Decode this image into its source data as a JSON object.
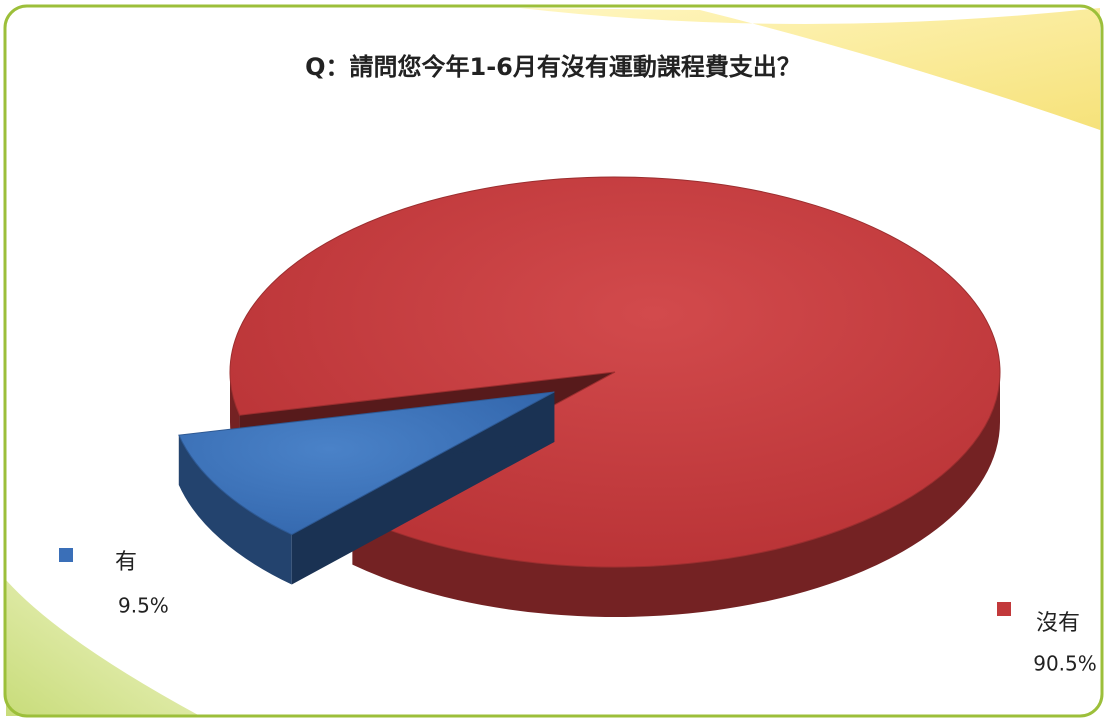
{
  "chart_data": {
    "type": "pie3d",
    "title": "Q：請問您今年1-6月有沒有運動課程費支出？",
    "categories": [
      "有",
      "沒有"
    ],
    "values": [
      9.5,
      90.5
    ],
    "value_labels": [
      "9.5%",
      "90.5%"
    ],
    "colors": [
      "#3a6fb8",
      "#c2393b"
    ]
  }
}
